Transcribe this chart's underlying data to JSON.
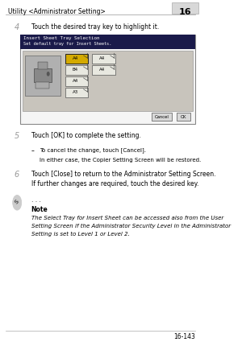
{
  "page_bg": "#ffffff",
  "header_text": "Utility <Administrator Setting>",
  "header_chapter": "16",
  "footer_text": "16-143",
  "step4_num": "4",
  "step4_text": "Touch the desired tray key to highlight it.",
  "dialog_title1": "Insert Sheet Tray Selection",
  "dialog_title2": "Set default tray for Insert Sheets.",
  "step5_num": "5",
  "step5_text": "Touch [OK] to complete the setting.",
  "step5_sub_dash": "–",
  "step5_sub_text1": "To cancel the change, touch [Cancel].",
  "step5_sub_text2": "In either case, the Copier Setting Screen will be restored.",
  "step6_num": "6",
  "step6_text1": "Touch [Close] to return to the Administrator Setting Screen.",
  "step6_text2": "If further changes are required, touch the desired key.",
  "note_dots": ". . .",
  "note_label": "Note",
  "note_text1": "The Select Tray for Insert Sheet can be accessed also from the User",
  "note_text2": "Setting Screen if the Administrator Security Level in the Administrator",
  "note_text3": "Setting is set to Level 1 or Level 2.",
  "text_color": "#000000",
  "step_num_color": "#999999"
}
